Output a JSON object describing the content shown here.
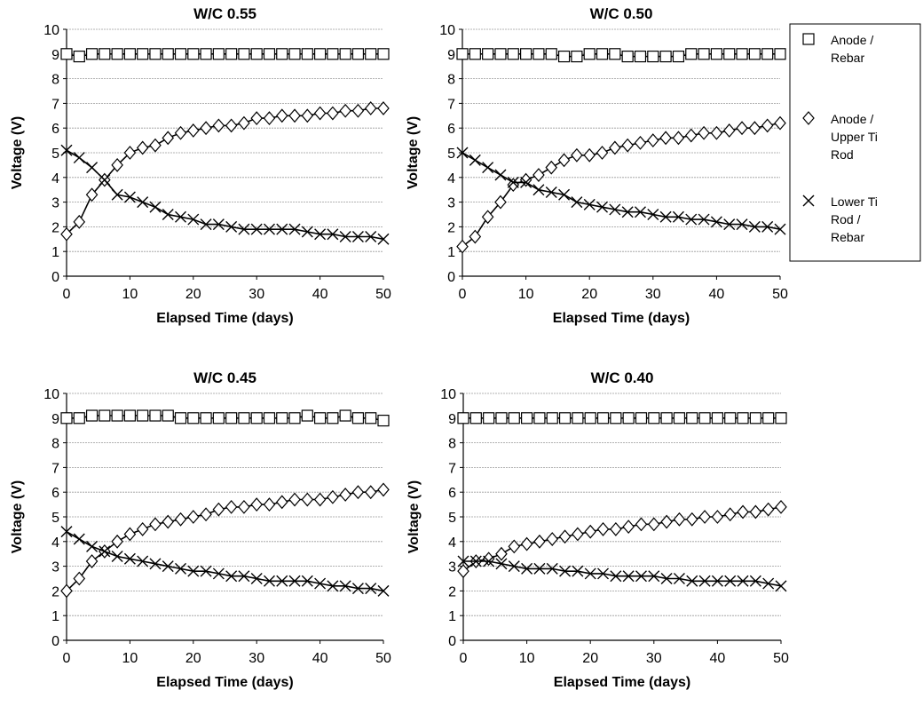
{
  "legend": [
    {
      "marker": "square",
      "lines": [
        "Anode /",
        "Rebar"
      ]
    },
    {
      "marker": "diamond",
      "lines": [
        "Anode /",
        "Upper Ti",
        "Rod"
      ]
    },
    {
      "marker": "cross",
      "lines": [
        "Lower Ti",
        "Rod /",
        "Rebar"
      ]
    }
  ],
  "chart_data": [
    {
      "type": "scatter",
      "title": "W/C 0.55",
      "xlabel": "Elapsed Time (days)",
      "ylabel": "Voltage (V)",
      "xlim": [
        0,
        50
      ],
      "ylim": [
        0,
        10
      ],
      "xticks": [
        0,
        10,
        20,
        30,
        40,
        50
      ],
      "yticks": [
        0,
        1,
        2,
        3,
        4,
        5,
        6,
        7,
        8,
        9,
        10
      ],
      "grid": "horizontal",
      "series": [
        {
          "marker": "square",
          "x": [
            0,
            2,
            4,
            6,
            8,
            10,
            12,
            14,
            16,
            18,
            20,
            22,
            24,
            26,
            28,
            30,
            32,
            34,
            36,
            38,
            40,
            42,
            44,
            46,
            48,
            50
          ],
          "y": [
            9.0,
            8.9,
            9.0,
            9.0,
            9.0,
            9.0,
            9.0,
            9.0,
            9.0,
            9.0,
            9.0,
            9.0,
            9.0,
            9.0,
            9.0,
            9.0,
            9.0,
            9.0,
            9.0,
            9.0,
            9.0,
            9.0,
            9.0,
            9.0,
            9.0,
            9.0
          ]
        },
        {
          "marker": "diamond",
          "x": [
            0,
            2,
            4,
            6,
            8,
            10,
            12,
            14,
            16,
            18,
            20,
            22,
            24,
            26,
            28,
            30,
            32,
            34,
            36,
            38,
            40,
            42,
            44,
            46,
            48,
            50
          ],
          "y": [
            1.7,
            2.2,
            3.3,
            3.9,
            4.5,
            5.0,
            5.2,
            5.3,
            5.6,
            5.8,
            5.9,
            6.0,
            6.1,
            6.1,
            6.2,
            6.4,
            6.4,
            6.5,
            6.5,
            6.5,
            6.6,
            6.6,
            6.7,
            6.7,
            6.8,
            6.8
          ]
        },
        {
          "marker": "cross",
          "x": [
            0,
            2,
            4,
            6,
            8,
            10,
            12,
            14,
            16,
            18,
            20,
            22,
            24,
            26,
            28,
            30,
            32,
            34,
            36,
            38,
            40,
            42,
            44,
            46,
            48,
            50
          ],
          "y": [
            5.1,
            4.8,
            4.4,
            3.9,
            3.3,
            3.2,
            3.0,
            2.8,
            2.5,
            2.4,
            2.3,
            2.1,
            2.1,
            2.0,
            1.9,
            1.9,
            1.9,
            1.9,
            1.9,
            1.8,
            1.7,
            1.7,
            1.6,
            1.6,
            1.6,
            1.5
          ]
        }
      ]
    },
    {
      "type": "scatter",
      "title": "W/C 0.50",
      "xlabel": "Elapsed Time (days)",
      "ylabel": "Voltage (V)",
      "xlim": [
        0,
        50
      ],
      "ylim": [
        0,
        10
      ],
      "xticks": [
        0,
        10,
        20,
        30,
        40,
        50
      ],
      "yticks": [
        0,
        1,
        2,
        3,
        4,
        5,
        6,
        7,
        8,
        9,
        10
      ],
      "grid": "horizontal",
      "series": [
        {
          "marker": "square",
          "x": [
            0,
            2,
            4,
            6,
            8,
            10,
            12,
            14,
            16,
            18,
            20,
            22,
            24,
            26,
            28,
            30,
            32,
            34,
            36,
            38,
            40,
            42,
            44,
            46,
            48,
            50
          ],
          "y": [
            9.0,
            9.0,
            9.0,
            9.0,
            9.0,
            9.0,
            9.0,
            9.0,
            8.9,
            8.9,
            9.0,
            9.0,
            9.0,
            8.9,
            8.9,
            8.9,
            8.9,
            8.9,
            9.0,
            9.0,
            9.0,
            9.0,
            9.0,
            9.0,
            9.0,
            9.0
          ]
        },
        {
          "marker": "diamond",
          "x": [
            0,
            2,
            4,
            6,
            8,
            10,
            12,
            14,
            16,
            18,
            20,
            22,
            24,
            26,
            28,
            30,
            32,
            34,
            36,
            38,
            40,
            42,
            44,
            46,
            48,
            50
          ],
          "y": [
            1.2,
            1.6,
            2.4,
            3.0,
            3.7,
            3.9,
            4.1,
            4.4,
            4.7,
            4.9,
            4.9,
            5.0,
            5.2,
            5.3,
            5.4,
            5.5,
            5.6,
            5.6,
            5.7,
            5.8,
            5.8,
            5.9,
            6.0,
            6.0,
            6.1,
            6.2
          ]
        },
        {
          "marker": "cross",
          "x": [
            0,
            2,
            4,
            6,
            8,
            10,
            12,
            14,
            16,
            18,
            20,
            22,
            24,
            26,
            28,
            30,
            32,
            34,
            36,
            38,
            40,
            42,
            44,
            46,
            48,
            50
          ],
          "y": [
            5.0,
            4.7,
            4.4,
            4.1,
            3.8,
            3.8,
            3.5,
            3.4,
            3.3,
            3.0,
            2.9,
            2.8,
            2.7,
            2.6,
            2.6,
            2.5,
            2.4,
            2.4,
            2.3,
            2.3,
            2.2,
            2.1,
            2.1,
            2.0,
            2.0,
            1.9
          ]
        }
      ]
    },
    {
      "type": "scatter",
      "title": "W/C 0.45",
      "xlabel": "Elapsed Time (days)",
      "ylabel": "Voltage (V)",
      "xlim": [
        0,
        50
      ],
      "ylim": [
        0,
        10
      ],
      "xticks": [
        0,
        10,
        20,
        30,
        40,
        50
      ],
      "yticks": [
        0,
        1,
        2,
        3,
        4,
        5,
        6,
        7,
        8,
        9,
        10
      ],
      "grid": "horizontal",
      "series": [
        {
          "marker": "square",
          "x": [
            0,
            2,
            4,
            6,
            8,
            10,
            12,
            14,
            16,
            18,
            20,
            22,
            24,
            26,
            28,
            30,
            32,
            34,
            36,
            38,
            40,
            42,
            44,
            46,
            48,
            50
          ],
          "y": [
            9.0,
            9.0,
            9.1,
            9.1,
            9.1,
            9.1,
            9.1,
            9.1,
            9.1,
            9.0,
            9.0,
            9.0,
            9.0,
            9.0,
            9.0,
            9.0,
            9.0,
            9.0,
            9.0,
            9.1,
            9.0,
            9.0,
            9.1,
            9.0,
            9.0,
            8.9
          ]
        },
        {
          "marker": "diamond",
          "x": [
            0,
            2,
            4,
            6,
            8,
            10,
            12,
            14,
            16,
            18,
            20,
            22,
            24,
            26,
            28,
            30,
            32,
            34,
            36,
            38,
            40,
            42,
            44,
            46,
            48,
            50
          ],
          "y": [
            2.0,
            2.5,
            3.2,
            3.6,
            4.0,
            4.3,
            4.5,
            4.7,
            4.8,
            4.9,
            5.0,
            5.1,
            5.3,
            5.4,
            5.4,
            5.5,
            5.5,
            5.6,
            5.7,
            5.7,
            5.7,
            5.8,
            5.9,
            6.0,
            6.0,
            6.1
          ]
        },
        {
          "marker": "cross",
          "x": [
            0,
            2,
            4,
            6,
            8,
            10,
            12,
            14,
            16,
            18,
            20,
            22,
            24,
            26,
            28,
            30,
            32,
            34,
            36,
            38,
            40,
            42,
            44,
            46,
            48,
            50
          ],
          "y": [
            4.4,
            4.1,
            3.8,
            3.6,
            3.4,
            3.3,
            3.2,
            3.1,
            3.0,
            2.9,
            2.8,
            2.8,
            2.7,
            2.6,
            2.6,
            2.5,
            2.4,
            2.4,
            2.4,
            2.4,
            2.3,
            2.2,
            2.2,
            2.1,
            2.1,
            2.0
          ]
        }
      ]
    },
    {
      "type": "scatter",
      "title": "W/C 0.40",
      "xlabel": "Elapsed Time (days)",
      "ylabel": "Voltage (V)",
      "xlim": [
        0,
        50
      ],
      "ylim": [
        0,
        10
      ],
      "xticks": [
        0,
        10,
        20,
        30,
        40,
        50
      ],
      "yticks": [
        0,
        1,
        2,
        3,
        4,
        5,
        6,
        7,
        8,
        9,
        10
      ],
      "grid": "horizontal",
      "series": [
        {
          "marker": "square",
          "x": [
            0,
            2,
            4,
            6,
            8,
            10,
            12,
            14,
            16,
            18,
            20,
            22,
            24,
            26,
            28,
            30,
            32,
            34,
            36,
            38,
            40,
            42,
            44,
            46,
            48,
            50
          ],
          "y": [
            9.0,
            9.0,
            9.0,
            9.0,
            9.0,
            9.0,
            9.0,
            9.0,
            9.0,
            9.0,
            9.0,
            9.0,
            9.0,
            9.0,
            9.0,
            9.0,
            9.0,
            9.0,
            9.0,
            9.0,
            9.0,
            9.0,
            9.0,
            9.0,
            9.0,
            9.0
          ]
        },
        {
          "marker": "diamond",
          "x": [
            0,
            2,
            4,
            6,
            8,
            10,
            12,
            14,
            16,
            18,
            20,
            22,
            24,
            26,
            28,
            30,
            32,
            34,
            36,
            38,
            40,
            42,
            44,
            46,
            48,
            50
          ],
          "y": [
            2.8,
            3.2,
            3.3,
            3.5,
            3.8,
            3.9,
            4.0,
            4.1,
            4.2,
            4.3,
            4.4,
            4.5,
            4.5,
            4.6,
            4.7,
            4.7,
            4.8,
            4.9,
            4.9,
            5.0,
            5.0,
            5.1,
            5.2,
            5.2,
            5.3,
            5.4
          ]
        },
        {
          "marker": "cross",
          "x": [
            0,
            2,
            4,
            6,
            8,
            10,
            12,
            14,
            16,
            18,
            20,
            22,
            24,
            26,
            28,
            30,
            32,
            34,
            36,
            38,
            40,
            42,
            44,
            46,
            48,
            50
          ],
          "y": [
            3.2,
            3.2,
            3.2,
            3.1,
            3.0,
            2.9,
            2.9,
            2.9,
            2.8,
            2.8,
            2.7,
            2.7,
            2.6,
            2.6,
            2.6,
            2.6,
            2.5,
            2.5,
            2.4,
            2.4,
            2.4,
            2.4,
            2.4,
            2.4,
            2.3,
            2.2
          ]
        }
      ]
    }
  ]
}
